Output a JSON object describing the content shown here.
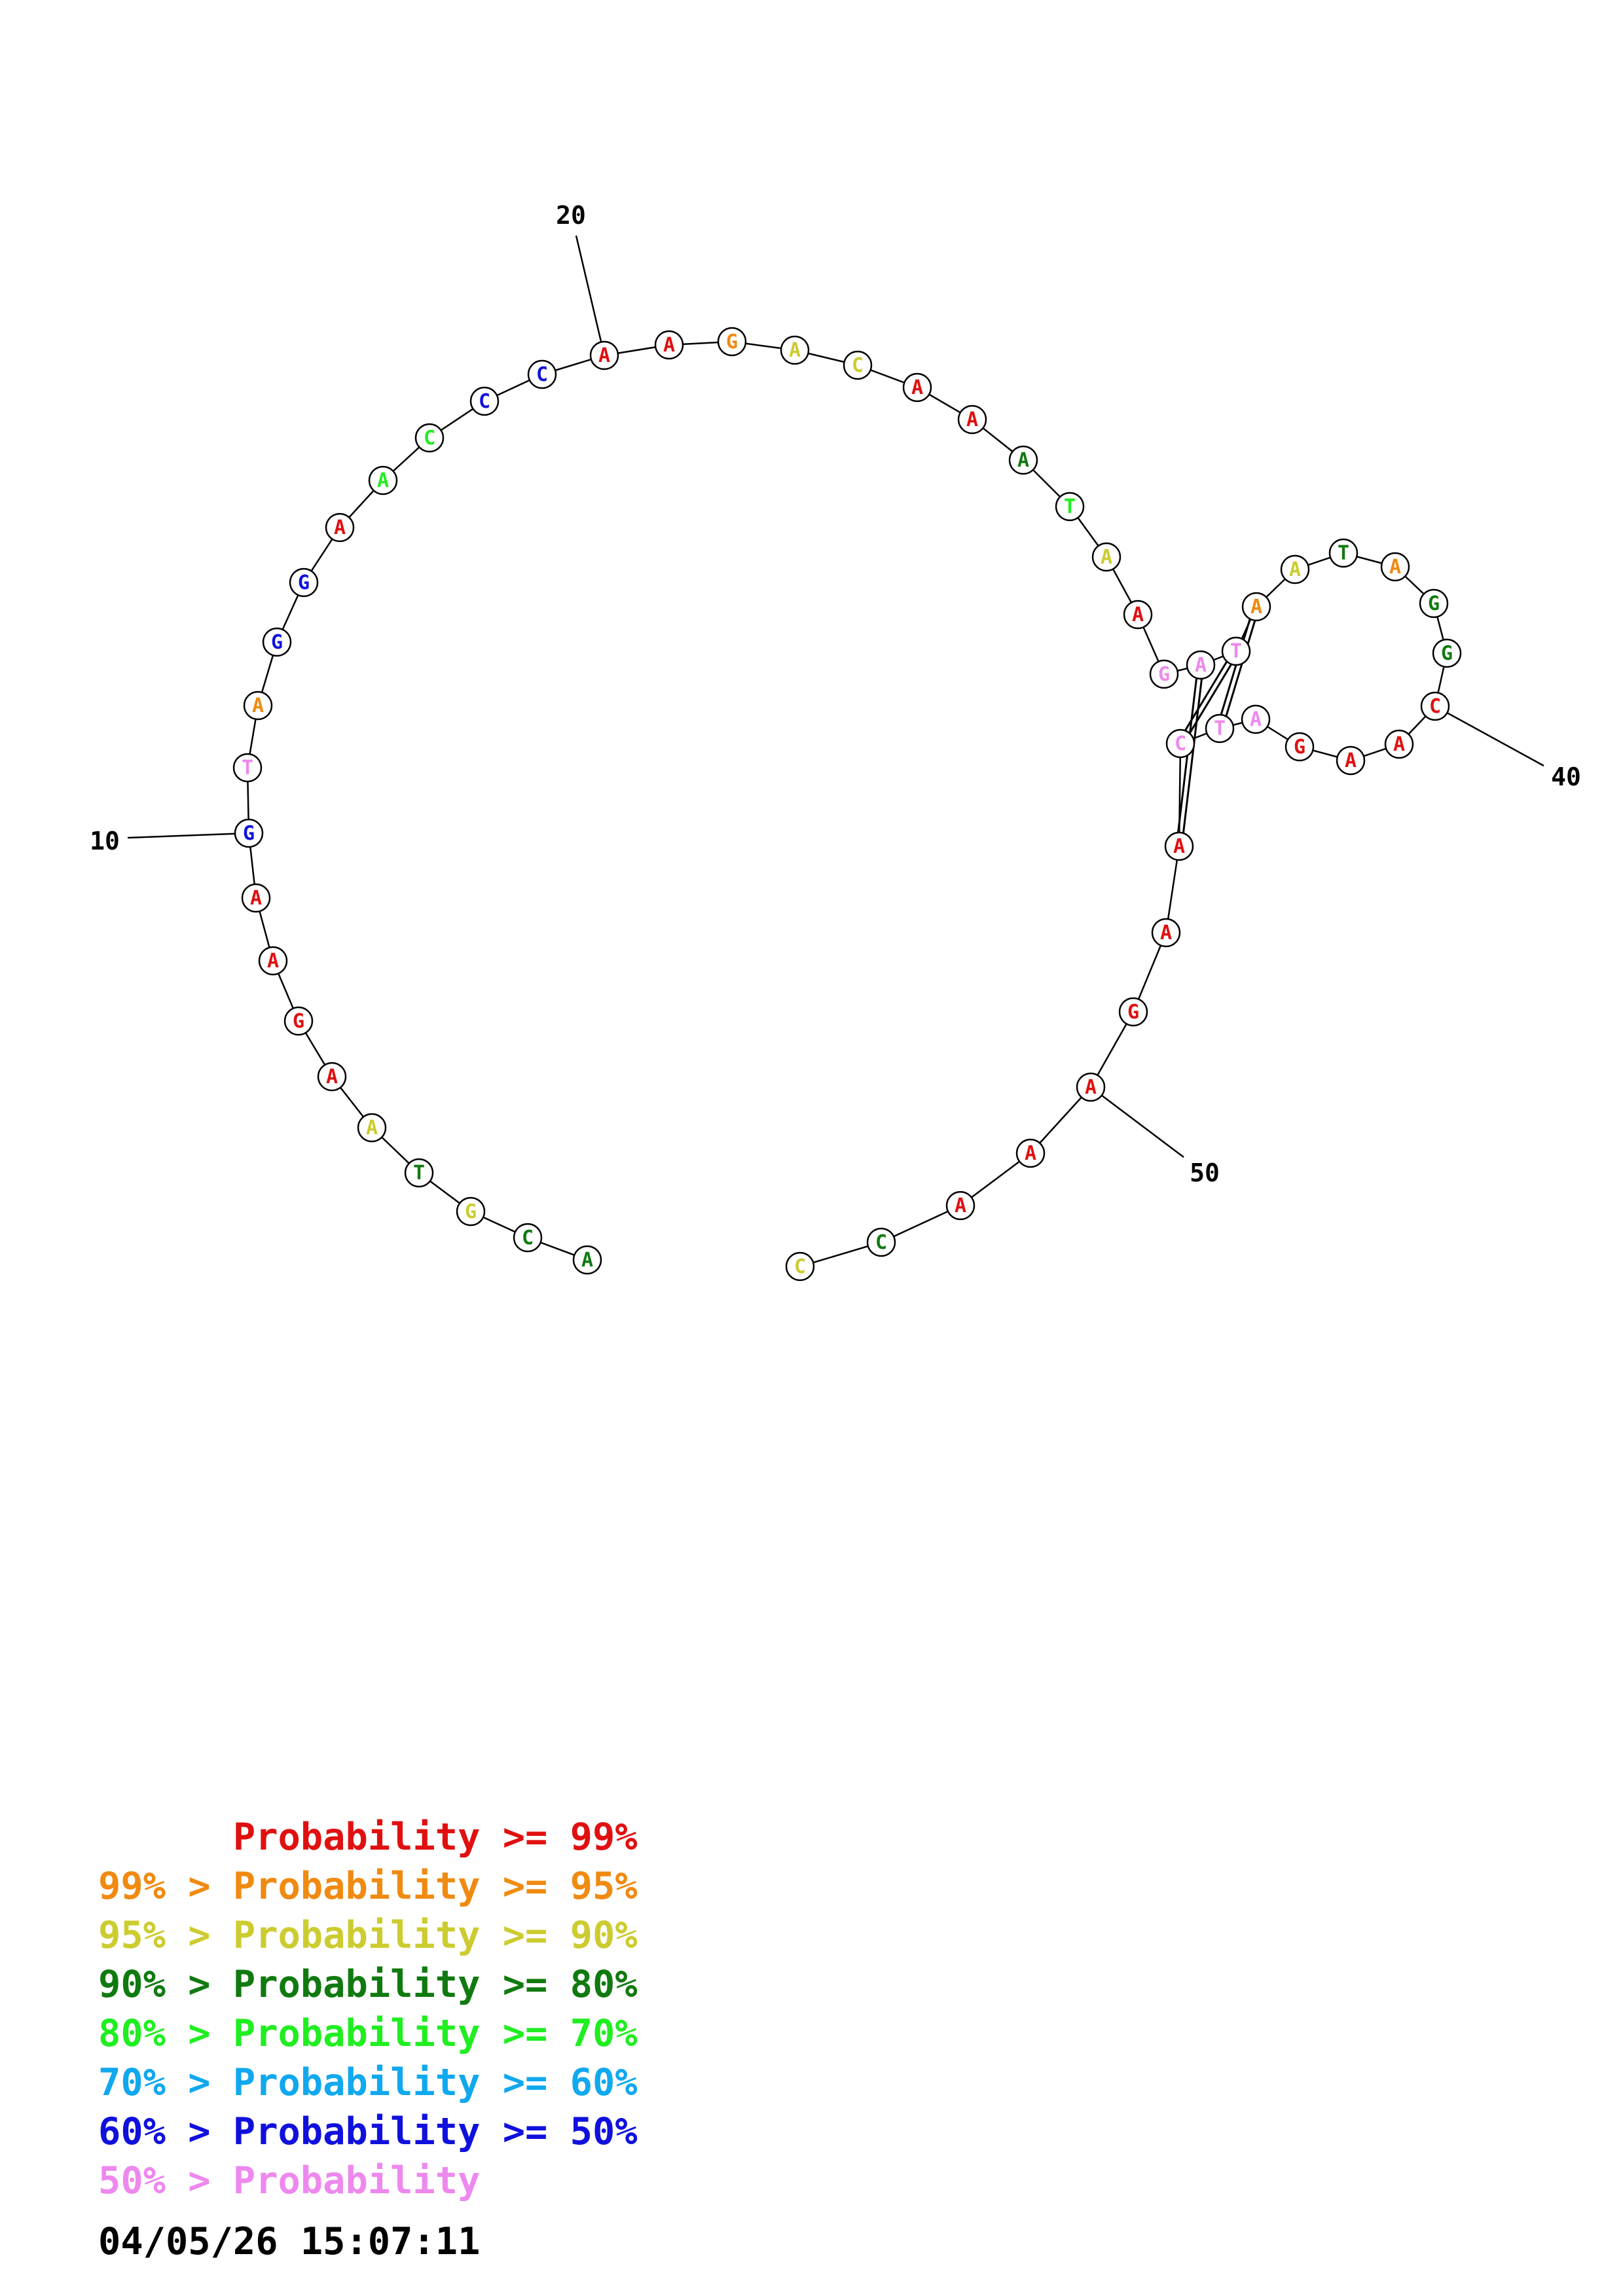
{
  "colors": {
    "ge99": "#e01010",
    "ge95": "#f08a10",
    "ge90": "#cccc30",
    "ge80": "#107a10",
    "ge70": "#20ee20",
    "ge60": "#10a8ee",
    "ge50": "#1010dd",
    "lt50": "#ee88ee"
  },
  "sequence": [
    {
      "base": "A",
      "p": "ge80"
    },
    {
      "base": "C",
      "p": "ge80"
    },
    {
      "base": "G",
      "p": "ge90"
    },
    {
      "base": "T",
      "p": "ge80"
    },
    {
      "base": "A",
      "p": "ge90"
    },
    {
      "base": "A",
      "p": "ge99"
    },
    {
      "base": "G",
      "p": "ge99"
    },
    {
      "base": "A",
      "p": "ge99"
    },
    {
      "base": "A",
      "p": "ge99"
    },
    {
      "base": "G",
      "p": "ge50"
    },
    {
      "base": "T",
      "p": "lt50"
    },
    {
      "base": "A",
      "p": "ge95"
    },
    {
      "base": "G",
      "p": "ge50"
    },
    {
      "base": "G",
      "p": "ge50"
    },
    {
      "base": "A",
      "p": "ge99"
    },
    {
      "base": "A",
      "p": "ge70"
    },
    {
      "base": "C",
      "p": "ge70"
    },
    {
      "base": "C",
      "p": "ge50"
    },
    {
      "base": "C",
      "p": "ge50"
    },
    {
      "base": "A",
      "p": "ge99"
    },
    {
      "base": "A",
      "p": "ge99"
    },
    {
      "base": "G",
      "p": "ge95"
    },
    {
      "base": "A",
      "p": "ge90"
    },
    {
      "base": "C",
      "p": "ge90"
    },
    {
      "base": "A",
      "p": "ge99"
    },
    {
      "base": "A",
      "p": "ge99"
    },
    {
      "base": "A",
      "p": "ge80"
    },
    {
      "base": "T",
      "p": "ge70"
    },
    {
      "base": "A",
      "p": "ge90"
    },
    {
      "base": "A",
      "p": "ge99"
    },
    {
      "base": "G",
      "p": "lt50"
    },
    {
      "base": "A",
      "p": "lt50"
    },
    {
      "base": "T",
      "p": "lt50"
    },
    {
      "base": "A",
      "p": "ge95"
    },
    {
      "base": "A",
      "p": "ge90"
    },
    {
      "base": "T",
      "p": "ge80"
    },
    {
      "base": "A",
      "p": "ge95"
    },
    {
      "base": "G",
      "p": "ge80"
    },
    {
      "base": "G",
      "p": "ge80"
    },
    {
      "base": "C",
      "p": "ge99"
    },
    {
      "base": "A",
      "p": "ge99"
    },
    {
      "base": "A",
      "p": "ge99"
    },
    {
      "base": "G",
      "p": "ge99"
    },
    {
      "base": "A",
      "p": "lt50"
    },
    {
      "base": "T",
      "p": "lt50"
    },
    {
      "base": "C",
      "p": "lt50"
    },
    {
      "base": "A",
      "p": "ge99"
    },
    {
      "base": "A",
      "p": "ge99"
    },
    {
      "base": "G",
      "p": "ge99"
    },
    {
      "base": "A",
      "p": "ge99"
    },
    {
      "base": "A",
      "p": "ge99"
    },
    {
      "base": "A",
      "p": "ge99"
    },
    {
      "base": "C",
      "p": "ge80"
    },
    {
      "base": "C",
      "p": "ge90"
    }
  ],
  "base_pairs": [
    [
      31,
      46
    ],
    [
      32,
      45
    ],
    [
      33,
      44
    ]
  ],
  "position_labels": [
    "10",
    "20",
    "40",
    "50"
  ],
  "legend": [
    {
      "prefix": "",
      "text": "Probability >= 99%",
      "p": "ge99"
    },
    {
      "prefix": "99% > ",
      "text": "Probability >= 95%",
      "p": "ge95"
    },
    {
      "prefix": "95% > ",
      "text": "Probability >= 90%",
      "p": "ge90"
    },
    {
      "prefix": "90% > ",
      "text": "Probability >= 80%",
      "p": "ge80"
    },
    {
      "prefix": "80% > ",
      "text": "Probability >= 70%",
      "p": "ge70"
    },
    {
      "prefix": "70% > ",
      "text": "Probability >= 60%",
      "p": "ge60"
    },
    {
      "prefix": "60% > ",
      "text": "Probability >= 50%",
      "p": "ge50"
    },
    {
      "prefix": "50% > ",
      "text": "Probability",
      "p": "lt50"
    }
  ],
  "timestamp": "04/05/26 15:07:11"
}
